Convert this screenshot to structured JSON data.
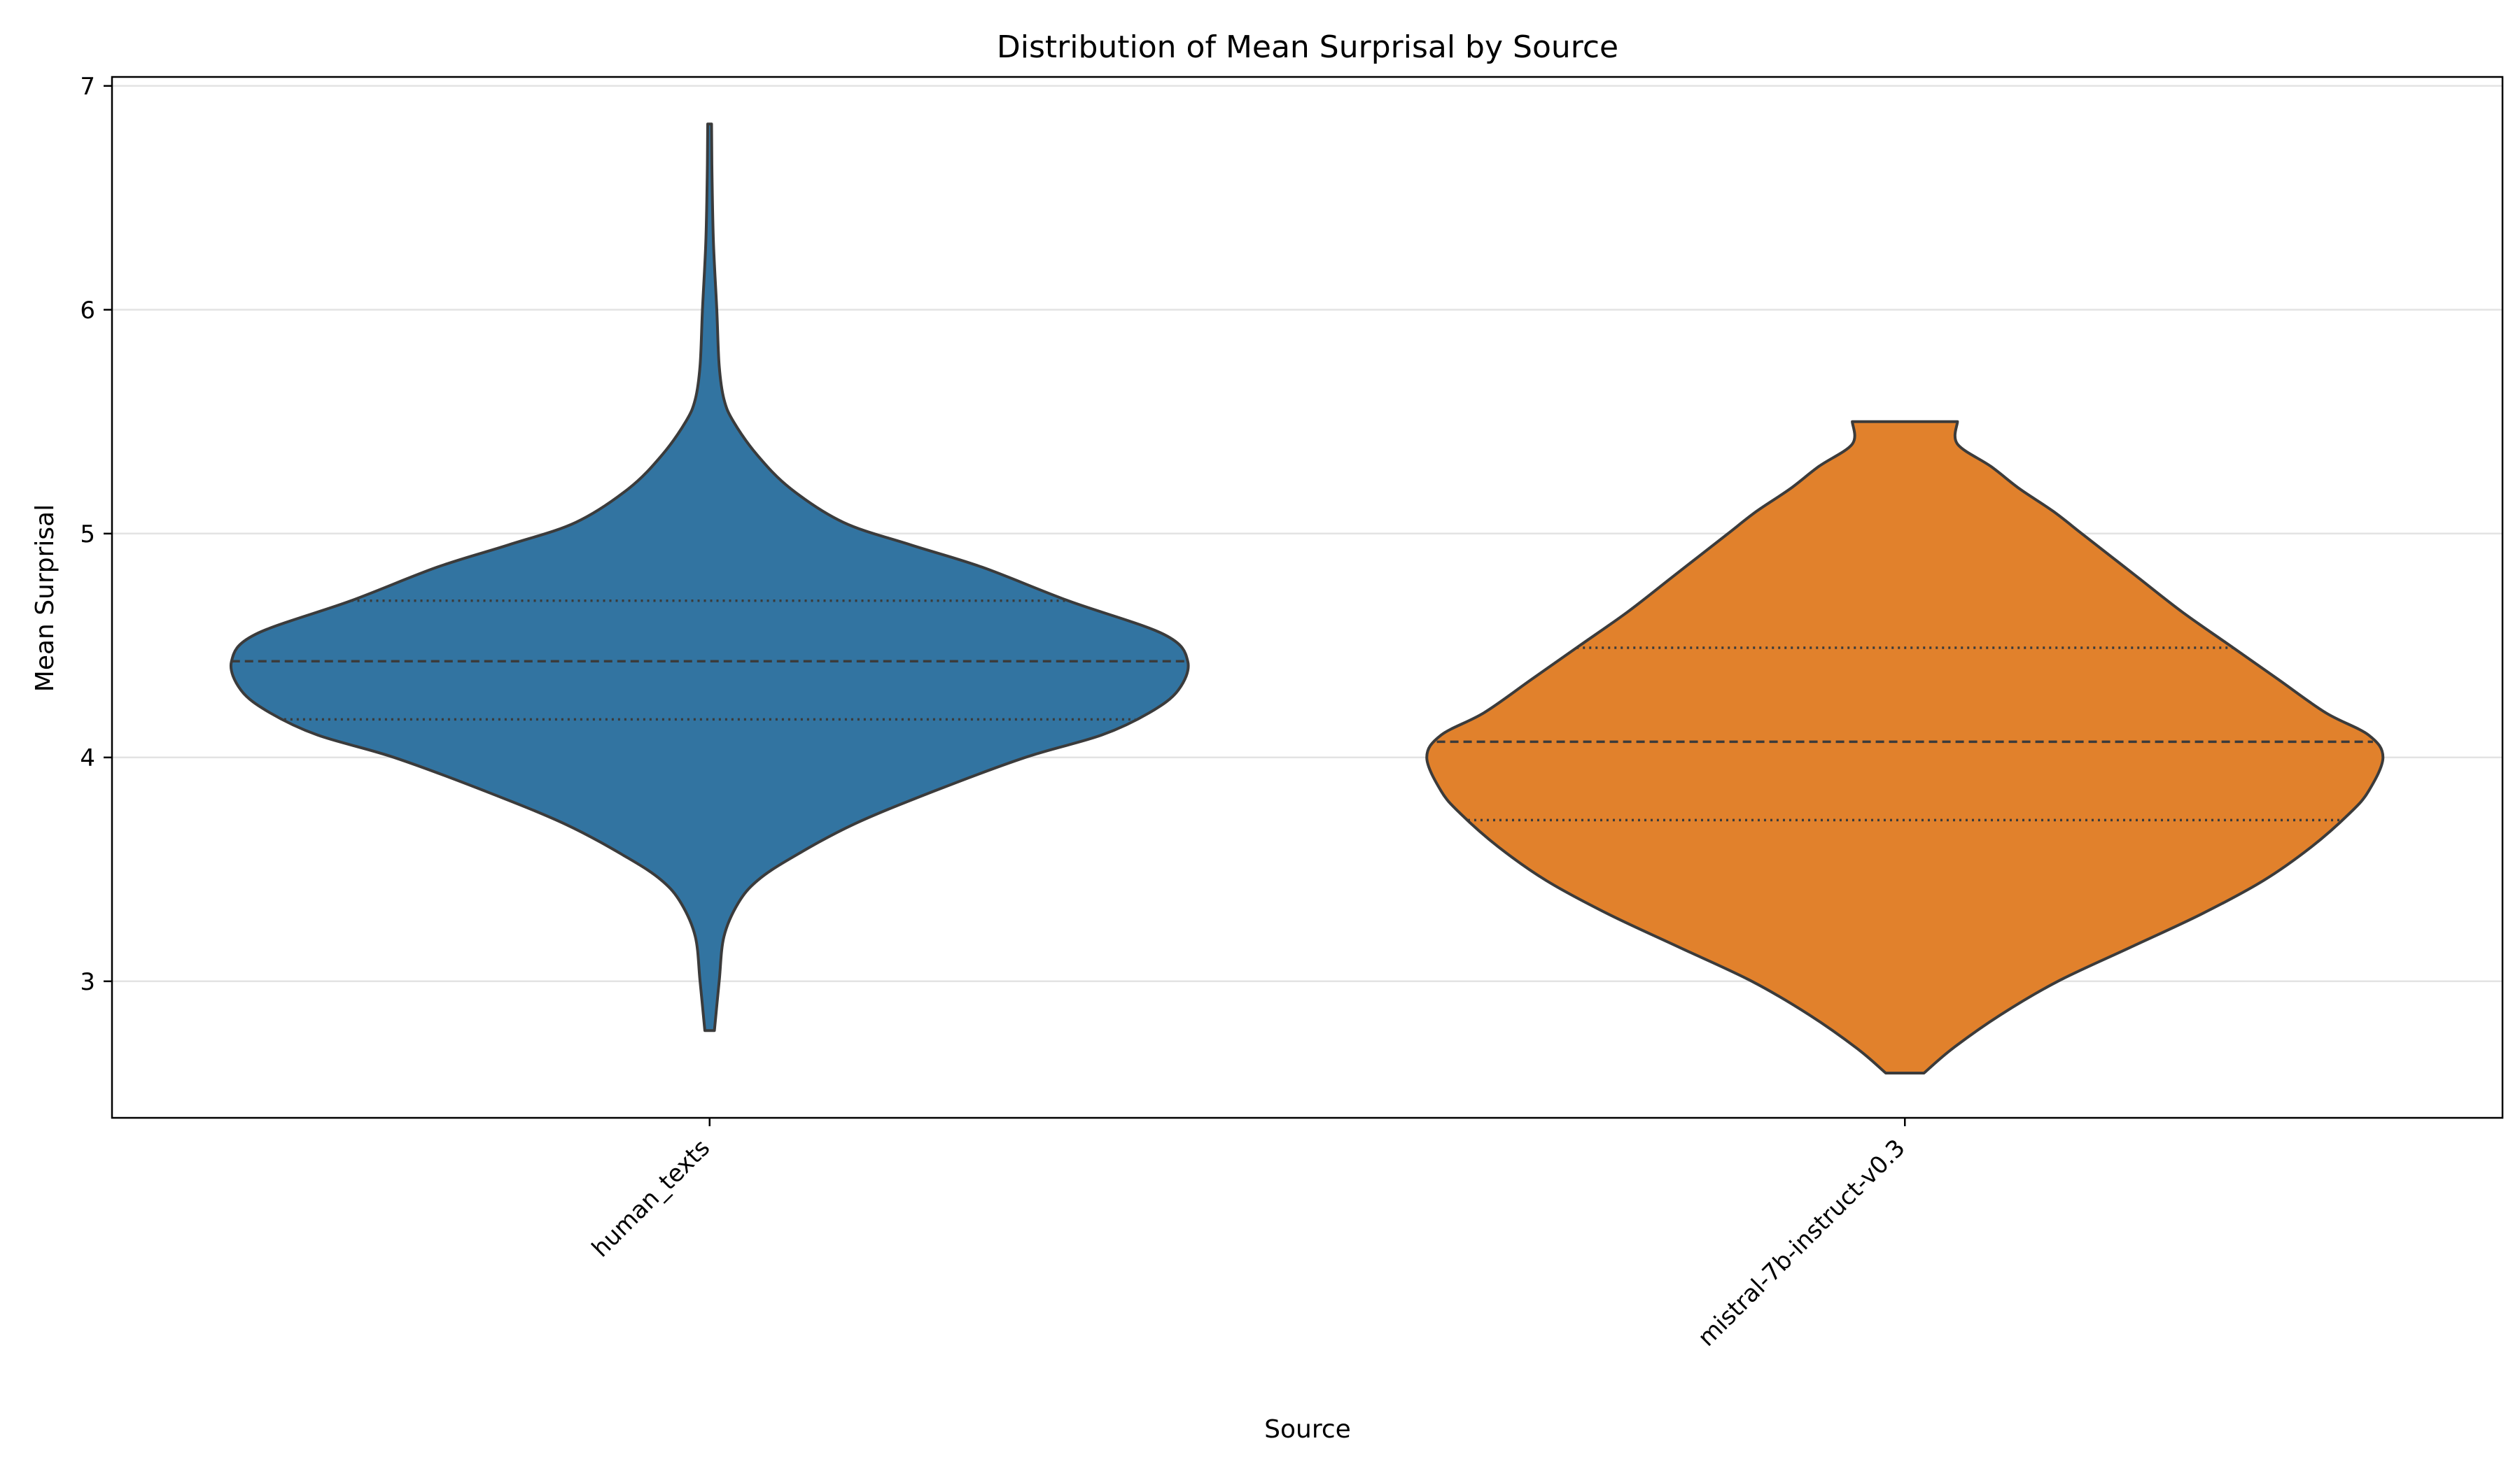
{
  "chart_data": {
    "type": "violin",
    "title": "Distribution of Mean Surprisal by Source",
    "xlabel": "Source",
    "ylabel": "Mean Surprisal",
    "ylim": [
      2.39,
      7.04
    ],
    "yticks": [
      3,
      4,
      5,
      6,
      7
    ],
    "grid": "horizontal",
    "legend": "none",
    "categories": [
      "human_texts",
      "mistral-7b-instruct-v0.3"
    ],
    "series": [
      {
        "category": "human_texts",
        "color": "#3274a1",
        "min": 2.78,
        "max": 6.83,
        "q1": 4.17,
        "median": 4.43,
        "q3": 4.7,
        "density_profile": [
          [
            2.78,
            0.01
          ],
          [
            3.0,
            0.02
          ],
          [
            3.2,
            0.03
          ],
          [
            3.35,
            0.06
          ],
          [
            3.45,
            0.1
          ],
          [
            3.55,
            0.17
          ],
          [
            3.7,
            0.3
          ],
          [
            3.85,
            0.47
          ],
          [
            4.0,
            0.66
          ],
          [
            4.1,
            0.82
          ],
          [
            4.2,
            0.92
          ],
          [
            4.3,
            0.98
          ],
          [
            4.43,
            1.0
          ],
          [
            4.55,
            0.95
          ],
          [
            4.7,
            0.75
          ],
          [
            4.85,
            0.57
          ],
          [
            4.95,
            0.42
          ],
          [
            5.05,
            0.28
          ],
          [
            5.2,
            0.17
          ],
          [
            5.35,
            0.1
          ],
          [
            5.5,
            0.05
          ],
          [
            5.6,
            0.03
          ],
          [
            5.75,
            0.02
          ],
          [
            6.0,
            0.015
          ],
          [
            6.3,
            0.008
          ],
          [
            6.6,
            0.005
          ],
          [
            6.83,
            0.004
          ]
        ]
      },
      {
        "category": "mistral-7b-instruct-v0.3",
        "color": "#e1812c",
        "min": 2.59,
        "max": 5.5,
        "q1": 3.72,
        "median": 4.07,
        "q3": 4.49,
        "density_profile": [
          [
            2.59,
            0.04
          ],
          [
            2.7,
            0.1
          ],
          [
            2.85,
            0.2
          ],
          [
            3.0,
            0.32
          ],
          [
            3.15,
            0.47
          ],
          [
            3.3,
            0.62
          ],
          [
            3.45,
            0.75
          ],
          [
            3.6,
            0.85
          ],
          [
            3.75,
            0.93
          ],
          [
            3.85,
            0.97
          ],
          [
            4.0,
            1.0
          ],
          [
            4.1,
            0.97
          ],
          [
            4.2,
            0.88
          ],
          [
            4.35,
            0.78
          ],
          [
            4.5,
            0.68
          ],
          [
            4.65,
            0.58
          ],
          [
            4.8,
            0.49
          ],
          [
            4.9,
            0.43
          ],
          [
            5.0,
            0.37
          ],
          [
            5.1,
            0.31
          ],
          [
            5.2,
            0.24
          ],
          [
            5.3,
            0.18
          ],
          [
            5.4,
            0.11
          ],
          [
            5.5,
            0.11
          ]
        ]
      }
    ]
  }
}
